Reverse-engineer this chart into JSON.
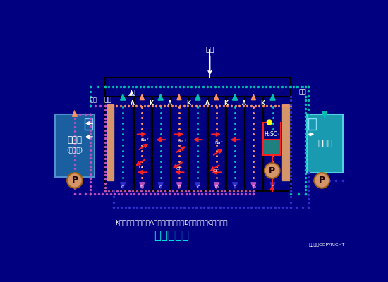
{
  "bg_color": "#000080",
  "title": "电滲析装置",
  "subtitle": "K－阳离子交换膜；A－阴离子交换膜；D－淡水室；C－浓水室",
  "copyright": "东方仿真COPYRIGHT",
  "left_tank_color": "#1a5fa0",
  "right_tank_color": "#1a9ab0",
  "electrode_color": "#d4956a",
  "dot_color_teal": "#00c0b0",
  "dot_color_pink": "#c050c0",
  "dot_color_blue": "#3030d0",
  "pump_color": "#d4956a",
  "acid_box_color": "#208080",
  "yellow_dot_color": "#ffff00",
  "white": "#ffffff",
  "cyan": "#00e8e8",
  "red": "#ff2020",
  "orange": "#ff9060",
  "black": "#000000"
}
